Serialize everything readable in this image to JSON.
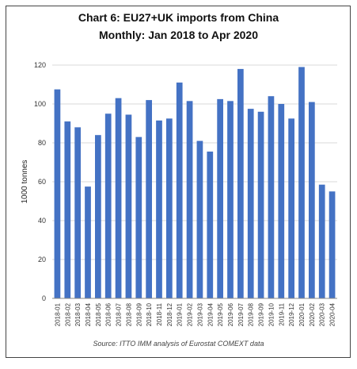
{
  "chart_data": {
    "type": "bar",
    "title": "Chart 6: EU27+UK imports from China",
    "subtitle": "Monthly: Jan 2018 to Apr 2020",
    "ylabel": "1000 tonnes",
    "xlabel": "",
    "ylim": [
      0,
      120
    ],
    "yticks": [
      0,
      20,
      40,
      60,
      80,
      100,
      120
    ],
    "grid": true,
    "legend": "none",
    "bar_color": "#4472C4",
    "categories": [
      "2018-01",
      "2018-02",
      "2018-03",
      "2018-04",
      "2018-05",
      "2018-06",
      "2018-07",
      "2018-08",
      "2018-09",
      "2018-10",
      "2018-11",
      "2018-12",
      "2019-01",
      "2019-02",
      "2019-03",
      "2019-04",
      "2019-05",
      "2019-06",
      "2019-07",
      "2019-08",
      "2019-09",
      "2019-10",
      "2019-11",
      "2019-12",
      "2020-01",
      "2020-02",
      "2020-03",
      "2020-04"
    ],
    "values": [
      107.5,
      91,
      88,
      57.5,
      84,
      95,
      103,
      94.5,
      83,
      102,
      91.5,
      92.5,
      111,
      101.5,
      81,
      75.5,
      102.5,
      101.5,
      118,
      97.5,
      96,
      104,
      100,
      92.5,
      119,
      101,
      58.5,
      55
    ],
    "source": "Source: ITTO IMM analysis of Eurostat COMEXT data"
  }
}
